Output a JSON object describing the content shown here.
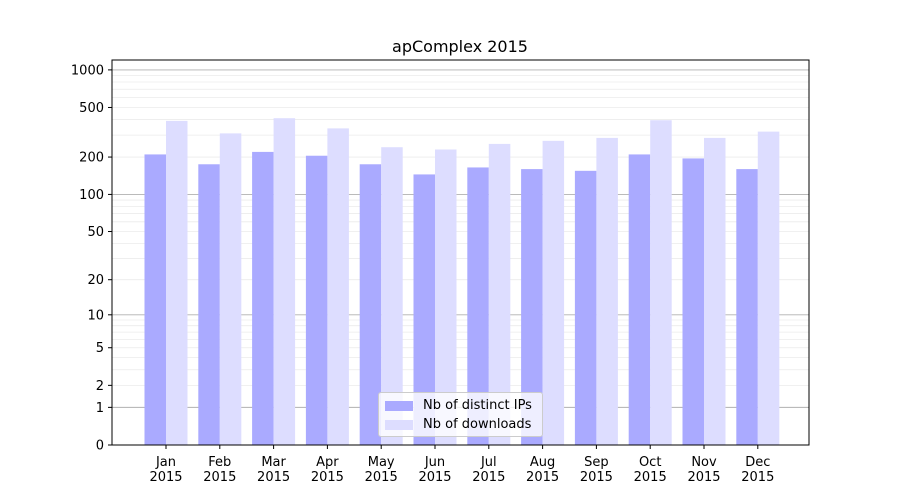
{
  "chart_data": {
    "type": "bar",
    "title": "apComplex 2015",
    "xlabel": "",
    "ylabel": "",
    "yscale": "log (offset by 1)",
    "yticks": [
      0,
      1,
      2,
      5,
      10,
      20,
      50,
      100,
      200,
      500,
      1000
    ],
    "ylim": [
      0,
      1200
    ],
    "grid": true,
    "legend_position": "lower center",
    "categories": [
      [
        "Jan",
        "2015"
      ],
      [
        "Feb",
        "2015"
      ],
      [
        "Mar",
        "2015"
      ],
      [
        "Apr",
        "2015"
      ],
      [
        "May",
        "2015"
      ],
      [
        "Jun",
        "2015"
      ],
      [
        "Jul",
        "2015"
      ],
      [
        "Aug",
        "2015"
      ],
      [
        "Sep",
        "2015"
      ],
      [
        "Oct",
        "2015"
      ],
      [
        "Nov",
        "2015"
      ],
      [
        "Dec",
        "2015"
      ]
    ],
    "series": [
      {
        "name": "Nb of distinct IPs",
        "color": "#aaaaff",
        "values": [
          210,
          175,
          220,
          205,
          175,
          145,
          165,
          160,
          155,
          210,
          195,
          160
        ]
      },
      {
        "name": "Nb of downloads",
        "color": "#ddddff",
        "values": [
          390,
          310,
          410,
          340,
          240,
          230,
          255,
          270,
          285,
          395,
          285,
          320
        ]
      }
    ]
  }
}
